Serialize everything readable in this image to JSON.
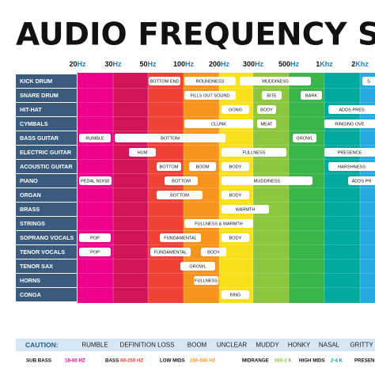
{
  "header": {
    "title": "AUDIO FREQUENCY SPECTRUM"
  },
  "frequencies": [
    {
      "num": "20",
      "unit": "Hz"
    },
    {
      "num": "30",
      "unit": "Hz"
    },
    {
      "num": "50",
      "unit": "Hz"
    },
    {
      "num": "100",
      "unit": "Hz"
    },
    {
      "num": "200",
      "unit": "Hz"
    },
    {
      "num": "300",
      "unit": "Hz"
    },
    {
      "num": "500",
      "unit": "Hz"
    },
    {
      "num": "1",
      "unit": "Khz"
    },
    {
      "num": "2",
      "unit": "Khz"
    }
  ],
  "rows": [
    {
      "name": "KICK DRUM",
      "tags": [
        "BOTTOM END",
        "ROUNDNESS",
        "MUDDINESS",
        "S"
      ]
    },
    {
      "name": "SNARE DRUM",
      "tags": [
        "FILLS OUT SOUND",
        "BITE",
        "BARK"
      ]
    },
    {
      "name": "HIT-HAT",
      "tags": [
        "GONG",
        "BODY",
        "ADDS PRES"
      ]
    },
    {
      "name": "CYMBALS",
      "tags": [
        "CLUNK",
        "MEAT",
        "RINGING OVE"
      ]
    },
    {
      "name": "BASS GUITAR",
      "tags": [
        "RUMBLE",
        "BOTTOM",
        "GROWL"
      ]
    },
    {
      "name": "ELECTRIC GUITAR",
      "tags": [
        "HUM",
        "FULLNESS",
        "PRESENCE"
      ]
    },
    {
      "name": "ACOUSTIC GUITAR",
      "tags": [
        "BOTTOM",
        "BOOM",
        "BODY",
        "HARSHNESS"
      ]
    },
    {
      "name": "PIANO",
      "tags": [
        "PEDAL NOISE",
        "BOTTOM",
        "MUDDINESS",
        "ADDS PR"
      ]
    },
    {
      "name": "ORGAN",
      "tags": [
        "BOTTOM",
        "BODY"
      ]
    },
    {
      "name": "BRASS",
      "tags": [
        "WARMTH"
      ]
    },
    {
      "name": "STRINGS",
      "tags": [
        "FULLNESS & WARMTH"
      ]
    },
    {
      "name": "SOPRANO VOCALS",
      "tags": [
        "POP",
        "FUNDAMENTAL",
        "BODY"
      ]
    },
    {
      "name": "TENOR VOCALS",
      "tags": [
        "POP",
        "FUNDAMENTAL",
        "BODY"
      ]
    },
    {
      "name": "TENOR SAX",
      "tags": [
        "GROWL"
      ]
    },
    {
      "name": "HORNS",
      "tags": [
        "FULLNESS"
      ]
    },
    {
      "name": "CONGA",
      "tags": [
        "RING"
      ]
    }
  ],
  "caution": {
    "label": "CAUTION:",
    "items": [
      "RUMBLE",
      "DEFINITION LOSS",
      "BOOM",
      "UNCLEAR",
      "MUDDY",
      "HONKY",
      "NASAL",
      "GRITTY"
    ]
  },
  "ranges": [
    {
      "name": "SUB BASS",
      "range": "16-60 HZ"
    },
    {
      "name": "BASS",
      "range": "60-250 HZ"
    },
    {
      "name": "LOW MIDS",
      "range": "250-500 HZ"
    },
    {
      "name": "MIDRANGE",
      "range": "500-2 K"
    },
    {
      "name": "HIGH MIDS",
      "range": "2-4 K"
    },
    {
      "name": "PRESEN",
      "range": ""
    }
  ]
}
